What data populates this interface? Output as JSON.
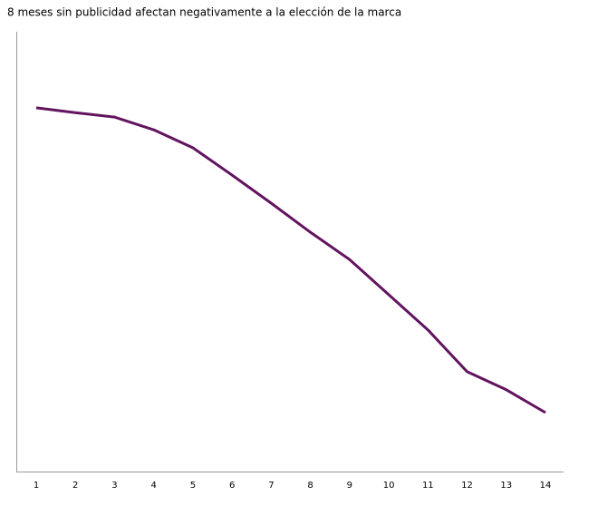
{
  "chart_data": {
    "type": "line",
    "title": "8 meses sin publicidad afectan negativamente a la elección de la marca",
    "categories": [
      "1",
      "2",
      "3",
      "4",
      "5",
      "6",
      "7",
      "8",
      "9",
      "10",
      "11",
      "12",
      "13",
      "14"
    ],
    "values": [
      82.7,
      81.6,
      80.6,
      77.7,
      73.6,
      67.4,
      61.0,
      54.4,
      48.2,
      40.2,
      32.2,
      22.7,
      18.6,
      13.4
    ],
    "color": "#62145f",
    "ylim": [
      0,
      100
    ]
  }
}
